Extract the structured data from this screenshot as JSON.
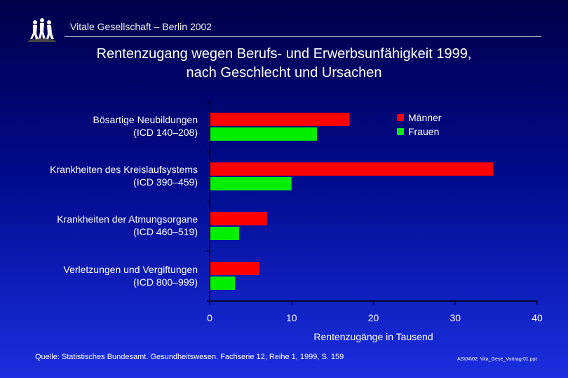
{
  "header": {
    "subtitle": "Vitale Gesellschaft – Berlin 2002"
  },
  "title": {
    "line1": "Rentenzugang wegen Berufs- und Erwerbsunfähigkeit 1999,",
    "line2": "nach Geschlecht und Ursachen"
  },
  "categories": [
    {
      "line1": "Bösartige Neubildungen",
      "line2": "(ICD 140–208)"
    },
    {
      "line1": "Krankheiten des Kreislaufsystems",
      "line2": "(ICD 390–459)"
    },
    {
      "line1": "Krankheiten der Atmungsorgane",
      "line2": "(ICD 460–519)"
    },
    {
      "line1": "Verletzungen und Vergiftungen",
      "line2": "(ICD 800–999)"
    }
  ],
  "chart_data": {
    "type": "bar",
    "orientation": "horizontal",
    "categories": [
      "Bösartige Neubildungen (ICD 140–208)",
      "Krankheiten des Kreislaufsystems (ICD 390–459)",
      "Krankheiten der Atmungsorgane (ICD 460–519)",
      "Verletzungen und Vergiftungen (ICD 800–999)"
    ],
    "series": [
      {
        "name": "Männer",
        "color": "#ff0000",
        "values": [
          17.1,
          34.6,
          7.0,
          6.1
        ]
      },
      {
        "name": "Frauen",
        "color": "#00ee00",
        "values": [
          13.1,
          10.0,
          3.6,
          3.1
        ]
      }
    ],
    "title": "Rentenzugang wegen Berufs- und Erwerbsunfähigkeit 1999, nach Geschlecht und Ursachen",
    "xlabel": "Rentenzugänge in Tausend",
    "ylabel": "",
    "xlim": [
      0,
      40
    ],
    "xticks": [
      0,
      10,
      20,
      30,
      40
    ],
    "grid": false,
    "legend": "top-right"
  },
  "footer": {
    "source": "Quelle: Statistisches Bundesamt. Gesundheitswesen. Fachserie 12, Reihe 1, 1999, S. 159",
    "file_ref": "AS\\04\\02: Vita_Gese_Vortrag-01.ppt"
  }
}
